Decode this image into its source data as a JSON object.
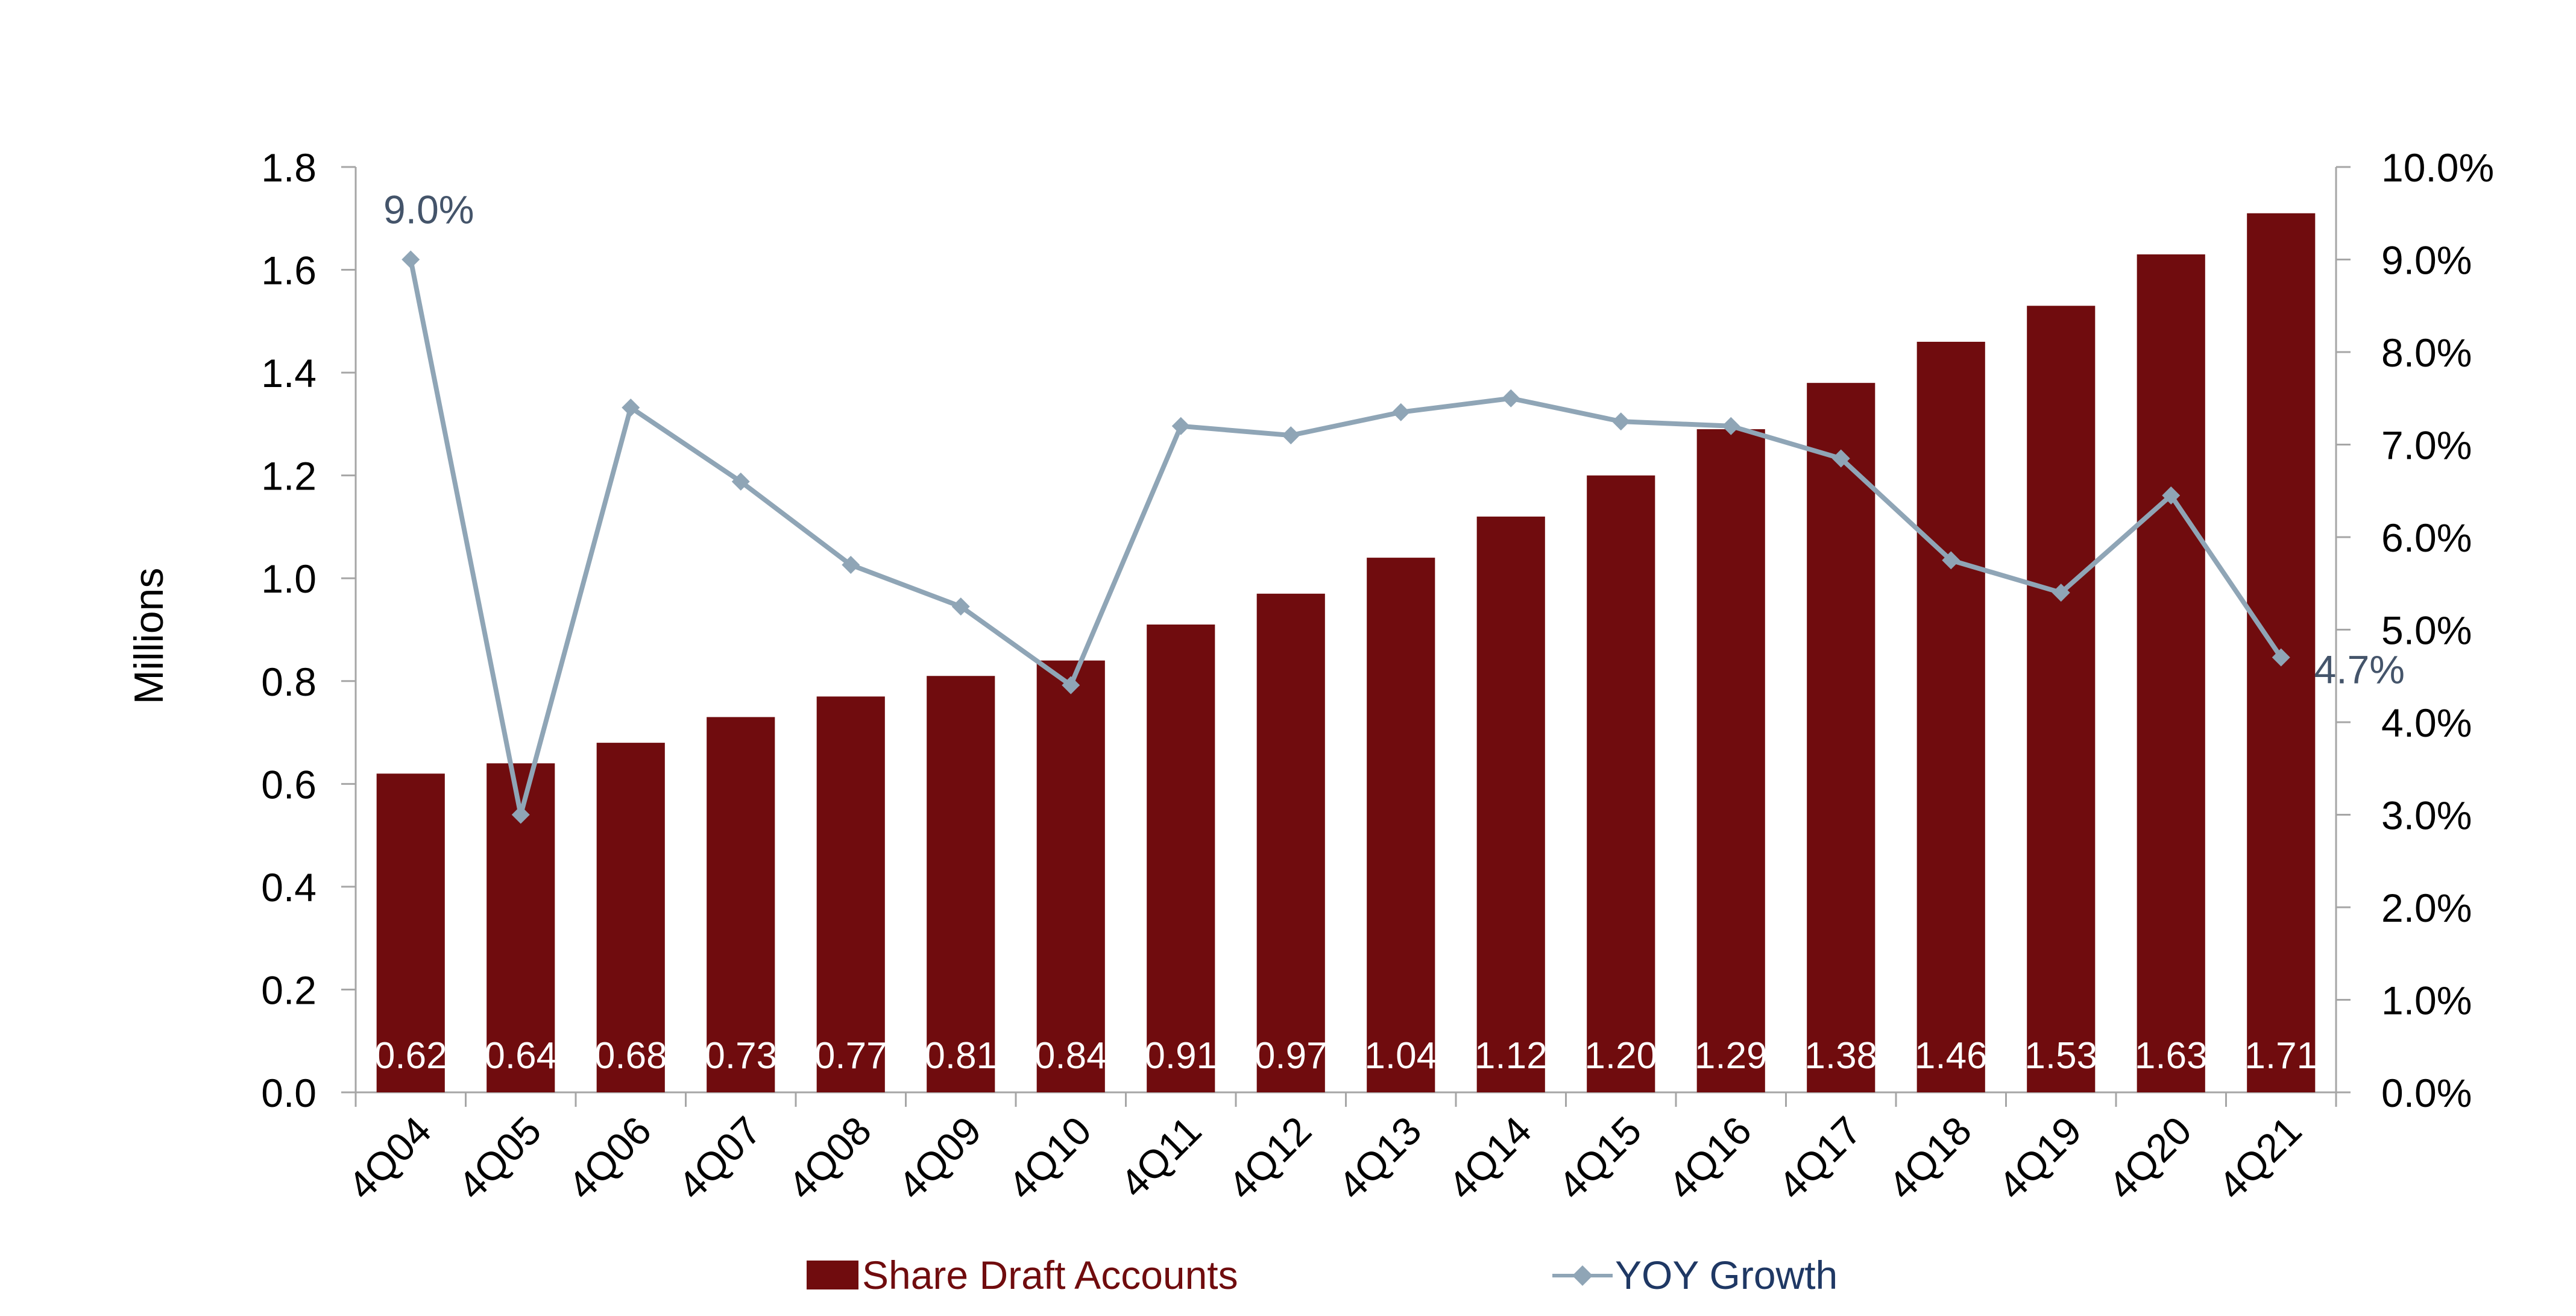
{
  "chart_data": {
    "type": "bar",
    "categories": [
      "4Q04",
      "4Q05",
      "4Q06",
      "4Q07",
      "4Q08",
      "4Q09",
      "4Q10",
      "4Q11",
      "4Q12",
      "4Q13",
      "4Q14",
      "4Q15",
      "4Q16",
      "4Q17",
      "4Q18",
      "4Q19",
      "4Q20",
      "4Q21"
    ],
    "y_left": {
      "label": "Millions",
      "ylim": [
        0,
        1.8
      ],
      "ticks": [
        "0.0",
        "0.2",
        "0.4",
        "0.6",
        "0.8",
        "1.0",
        "1.2",
        "1.4",
        "1.6",
        "1.8"
      ]
    },
    "y_right": {
      "ylim": [
        0,
        10
      ],
      "ticks": [
        "0.0%",
        "1.0%",
        "2.0%",
        "3.0%",
        "4.0%",
        "5.0%",
        "6.0%",
        "7.0%",
        "8.0%",
        "9.0%",
        "10.0%"
      ]
    },
    "series": [
      {
        "name": "Share Draft Accounts",
        "type": "bar",
        "axis": "left",
        "color": "#700c0e",
        "values": [
          0.62,
          0.64,
          0.68,
          0.73,
          0.77,
          0.81,
          0.84,
          0.91,
          0.97,
          1.04,
          1.12,
          1.2,
          1.29,
          1.38,
          1.46,
          1.53,
          1.63,
          1.71
        ],
        "data_labels": [
          "0.62",
          "0.64",
          "0.68",
          "0.73",
          "0.77",
          "0.81",
          "0.84",
          "0.91",
          "0.97",
          "1.04",
          "1.12",
          "1.20",
          "1.29",
          "1.38",
          "1.46",
          "1.53",
          "1.63",
          "1.71"
        ]
      },
      {
        "name": "YOY Growth",
        "type": "line",
        "axis": "right",
        "color": "#8fa5b6",
        "values": [
          9.0,
          3.0,
          7.4,
          6.6,
          5.7,
          5.25,
          4.4,
          7.2,
          7.1,
          7.35,
          7.5,
          7.25,
          7.2,
          6.85,
          5.75,
          5.4,
          6.45,
          4.7
        ],
        "data_labels": {
          "0": "9.0%",
          "17": "4.7%"
        }
      }
    ],
    "grid": false,
    "legend_position": "bottom"
  }
}
